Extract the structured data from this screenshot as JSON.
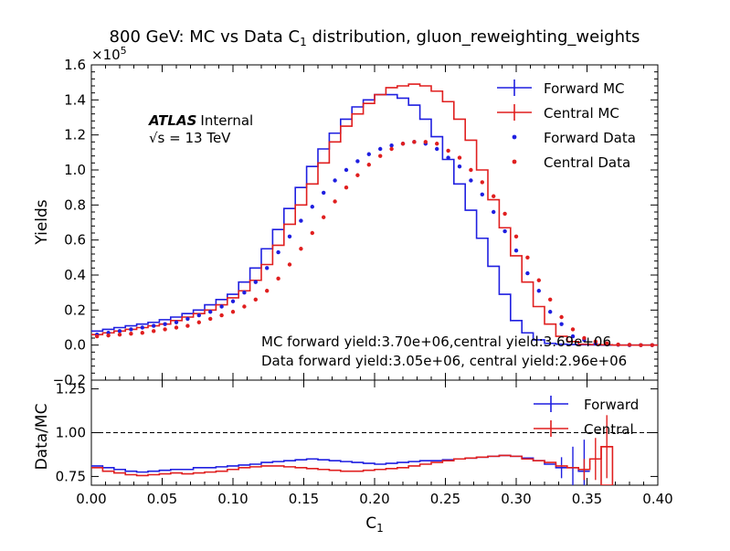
{
  "chart_data": [
    {
      "type": "line",
      "title_main": "800 GeV: MC vs Data C",
      "title_sub": "1",
      "title_rest": " distribution, gluon_reweighting_weights",
      "ylabel": "Yields",
      "y_multiplier_base": "×10",
      "y_multiplier_exp": "5",
      "xlim": [
        0.0,
        0.4
      ],
      "ylim": [
        -0.2,
        1.6
      ],
      "x_ticks": [
        "0.00",
        "0.05",
        "0.10",
        "0.15",
        "0.20",
        "0.25",
        "0.30",
        "0.35",
        "0.40"
      ],
      "y_ticks": [
        "−0.2",
        "0.0",
        "0.2",
        "0.4",
        "0.6",
        "0.8",
        "1.0",
        "1.2",
        "1.4",
        "1.6"
      ],
      "atlas_label": "ATLAS",
      "atlas_sub": "Internal",
      "energy_label": "√s = 13 TeV",
      "legend_position": "top-right",
      "annotations": [
        "MC forward yield:3.70e+06,central yield:3.69e+06",
        "Data forward yield:3.05e+06, central yield:2.96e+06"
      ],
      "bin_width": 0.008,
      "series": [
        {
          "name": "Forward MC",
          "style": "step",
          "color": "#1f1fe0",
          "values": [
            0.08,
            0.09,
            0.1,
            0.11,
            0.12,
            0.13,
            0.145,
            0.16,
            0.18,
            0.2,
            0.23,
            0.26,
            0.29,
            0.36,
            0.44,
            0.55,
            0.66,
            0.78,
            0.9,
            1.02,
            1.12,
            1.21,
            1.29,
            1.36,
            1.4,
            1.43,
            1.43,
            1.41,
            1.37,
            1.29,
            1.19,
            1.06,
            0.92,
            0.77,
            0.61,
            0.45,
            0.29,
            0.14,
            0.07,
            0.03,
            0.01,
            0.005,
            0.003,
            0.002,
            0.001,
            0.0,
            0.0,
            0.0,
            0.0,
            0.0
          ]
        },
        {
          "name": "Central MC",
          "style": "step",
          "color": "#e01f1f",
          "values": [
            0.06,
            0.07,
            0.08,
            0.09,
            0.1,
            0.11,
            0.12,
            0.14,
            0.16,
            0.18,
            0.2,
            0.23,
            0.27,
            0.31,
            0.37,
            0.46,
            0.57,
            0.69,
            0.8,
            0.92,
            1.04,
            1.16,
            1.25,
            1.32,
            1.38,
            1.43,
            1.47,
            1.48,
            1.49,
            1.48,
            1.45,
            1.39,
            1.29,
            1.17,
            1.0,
            0.83,
            0.67,
            0.51,
            0.36,
            0.22,
            0.12,
            0.05,
            0.02,
            0.005,
            0.003,
            0.002,
            0.0,
            0.0,
            0.0,
            0.0
          ]
        },
        {
          "name": "Forward Data",
          "style": "dots",
          "color": "#1f1fe0",
          "values": [
            0.06,
            0.07,
            0.08,
            0.09,
            0.1,
            0.11,
            0.12,
            0.13,
            0.15,
            0.17,
            0.19,
            0.22,
            0.25,
            0.3,
            0.36,
            0.44,
            0.53,
            0.62,
            0.71,
            0.79,
            0.87,
            0.94,
            1.0,
            1.05,
            1.09,
            1.12,
            1.14,
            1.15,
            1.16,
            1.15,
            1.12,
            1.07,
            1.02,
            0.94,
            0.86,
            0.76,
            0.65,
            0.54,
            0.41,
            0.31,
            0.19,
            0.12,
            0.05,
            0.03,
            0.01,
            0.005,
            0.002,
            0.0,
            0.0,
            0.0
          ]
        },
        {
          "name": "Central Data",
          "style": "dots",
          "color": "#e01f1f",
          "values": [
            0.05,
            0.055,
            0.06,
            0.065,
            0.07,
            0.08,
            0.09,
            0.1,
            0.11,
            0.13,
            0.15,
            0.17,
            0.19,
            0.22,
            0.26,
            0.31,
            0.38,
            0.46,
            0.55,
            0.64,
            0.73,
            0.82,
            0.9,
            0.97,
            1.03,
            1.08,
            1.12,
            1.15,
            1.16,
            1.16,
            1.15,
            1.11,
            1.07,
            1.0,
            0.93,
            0.85,
            0.75,
            0.62,
            0.5,
            0.37,
            0.26,
            0.16,
            0.09,
            0.04,
            0.02,
            0.01,
            0.003,
            0.002,
            0.0,
            0.0
          ]
        }
      ]
    },
    {
      "type": "line",
      "ylabel": "Data/MC",
      "xlabel_main": "C",
      "xlabel_sub": "1",
      "xlim": [
        0.0,
        0.4
      ],
      "ylim": [
        0.7,
        1.3
      ],
      "y_ticks": [
        "0.75",
        "1.00",
        "1.25"
      ],
      "reference_line": 1.0,
      "legend_position": "top-right",
      "series": [
        {
          "name": "Forward",
          "style": "step",
          "color": "#1f1fe0",
          "values": [
            0.81,
            0.8,
            0.79,
            0.78,
            0.775,
            0.78,
            0.785,
            0.79,
            0.79,
            0.8,
            0.8,
            0.805,
            0.81,
            0.815,
            0.82,
            0.83,
            0.835,
            0.84,
            0.845,
            0.85,
            0.845,
            0.84,
            0.835,
            0.83,
            0.825,
            0.82,
            0.825,
            0.83,
            0.835,
            0.84,
            0.84,
            0.845,
            0.85,
            0.855,
            0.86,
            0.865,
            0.87,
            0.865,
            0.855,
            0.84,
            0.82,
            0.8,
            0.8,
            0.78
          ]
        },
        {
          "name": "Central",
          "style": "step",
          "color": "#e01f1f",
          "values": [
            0.8,
            0.78,
            0.77,
            0.76,
            0.755,
            0.76,
            0.765,
            0.77,
            0.765,
            0.77,
            0.775,
            0.78,
            0.79,
            0.8,
            0.805,
            0.81,
            0.81,
            0.805,
            0.8,
            0.795,
            0.79,
            0.785,
            0.78,
            0.78,
            0.785,
            0.79,
            0.795,
            0.8,
            0.81,
            0.82,
            0.83,
            0.84,
            0.85,
            0.855,
            0.86,
            0.865,
            0.87,
            0.865,
            0.85,
            0.84,
            0.83,
            0.81,
            0.8,
            0.79,
            0.85,
            0.92
          ]
        }
      ]
    }
  ]
}
